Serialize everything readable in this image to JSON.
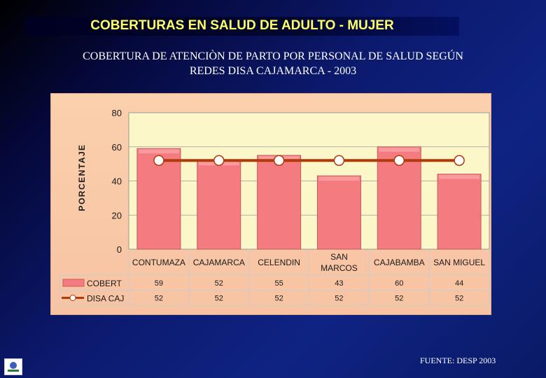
{
  "slide": {
    "title": "COBERTURAS EN SALUD DE ADULTO - MUJER",
    "subtitle_line1": "COBERTURA DE ATENCIÒN DE PARTO POR PERSONAL DE SALUD SEGÚN",
    "subtitle_line2": "REDES DISA CAJAMARCA - 2003",
    "source": "FUENTE: DESP 2003"
  },
  "colors": {
    "bar": "#f47b80",
    "line": "#b03a0a",
    "marker_fill": "#ffffff",
    "plot_bg": "#fbf7c8"
  },
  "chart_data": {
    "type": "bar",
    "categories": [
      [
        "CONTUMAZA"
      ],
      [
        "CAJAMARCA"
      ],
      [
        "CELENDIN"
      ],
      [
        "SAN",
        "MARCOS"
      ],
      [
        "CAJABAMBA"
      ],
      [
        "SAN MIGUEL"
      ]
    ],
    "series": [
      {
        "name": "COBERT",
        "type": "bar",
        "values": [
          59,
          52,
          55,
          43,
          60,
          44
        ]
      },
      {
        "name": "DISA CAJ",
        "type": "line",
        "values": [
          52,
          52,
          52,
          52,
          52,
          52
        ]
      }
    ],
    "ylabel": "PORCENTAJE",
    "ylim": [
      0,
      80
    ],
    "yticks": [
      0,
      20,
      40,
      60,
      80
    ],
    "grid": true,
    "data_table": true
  }
}
